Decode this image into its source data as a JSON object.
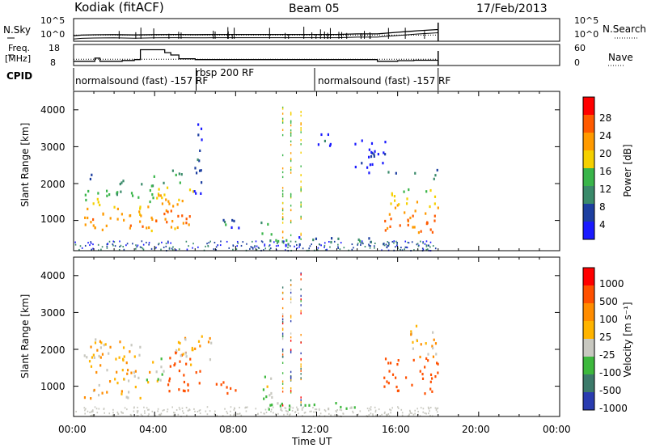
{
  "header": {
    "radar": "Kodiak (fitACF)",
    "beam": "Beam 05",
    "date": "17/Feb/2013"
  },
  "top_panels": {
    "nsky_label": "N.Sky",
    "nsky_ticks": [
      "10^5",
      "10^0"
    ],
    "nsearch_ticks": [
      "10^5",
      "10^0"
    ],
    "nsearch_label": "N.Search",
    "freq_label_1": "Freq.",
    "freq_label_2": "[MHz]",
    "freq_ticks": [
      "18",
      "8"
    ],
    "nave_ticks": [
      "60",
      "0"
    ],
    "nave_label": "Nave",
    "cpid_label": "CPID",
    "cpid_segments": [
      {
        "label": "normalsound (fast) -157 RF",
        "start": 0.0,
        "end": 6.05
      },
      {
        "label": "rbsp 200 RF",
        "start": 6.05,
        "end": 11.9
      },
      {
        "label": "normalsound (fast) -157 RF",
        "start": 11.9,
        "end": 18.0
      }
    ]
  },
  "axes": {
    "xlabel": "Time UT",
    "xticks": [
      "00:00",
      "04:00",
      "08:00",
      "12:00",
      "16:00",
      "20:00",
      "00:00"
    ],
    "ylabel": "Slant Range [km]",
    "yticks": [
      "1000",
      "2000",
      "3000",
      "4000"
    ]
  },
  "power_colorbar": {
    "label": "Power [dB]",
    "ticks": [
      "28",
      "24",
      "20",
      "16",
      "12",
      "8",
      "4"
    ]
  },
  "velocity_colorbar": {
    "label": "Velocity [m s⁻¹]",
    "ticks": [
      "1000",
      "500",
      "100",
      "25",
      "-25",
      "-100",
      "-500",
      "-1000"
    ]
  },
  "colors": {
    "power": [
      "#1a1aff",
      "#1d3fa0",
      "#3a8a6a",
      "#39b54a",
      "#f5d000",
      "#ff9a00",
      "#ff5a00",
      "#ff0000"
    ],
    "velocity": [
      "#2a3cb0",
      "#3c7a6a",
      "#3db83d",
      "#c8c8c0",
      "#ffb400",
      "#ff8c00",
      "#ff5000",
      "#ff0000"
    ]
  },
  "chart_data": [
    {
      "type": "line",
      "title": "N.Sky / N.Search",
      "x_range": [
        0,
        24
      ],
      "y_scale": "log",
      "ylim": [
        1,
        100000
      ],
      "series": [
        {
          "name": "N.Sky",
          "x": [
            0,
            0.4,
            1,
            2,
            3,
            4,
            5,
            6,
            7,
            8,
            9,
            10,
            11,
            12,
            13,
            14,
            15,
            16,
            17,
            18
          ],
          "values": [
            10,
            15,
            18,
            20,
            16,
            20,
            22,
            20,
            22,
            22,
            22,
            22,
            22,
            22,
            22,
            30,
            30,
            80,
            200,
            400
          ]
        },
        {
          "name": "N.Search",
          "x": [
            0,
            18
          ],
          "values": [
            15,
            15
          ]
        }
      ]
    },
    {
      "type": "line",
      "title": "Freq. / Nave",
      "x_range": [
        0,
        24
      ],
      "series": [
        {
          "name": "Freq. [MHz]",
          "ylim": [
            8,
            18
          ],
          "x": [
            0,
            0.8,
            1.05,
            1.3,
            1.6,
            2.4,
            3.0,
            3.3,
            3.9,
            4.5,
            4.8,
            5.2,
            6.0,
            14.7,
            15.0,
            16.0,
            16.8,
            18.0
          ],
          "values": [
            10,
            10,
            11.5,
            10,
            10,
            10.4,
            10.8,
            15.5,
            15.5,
            14.1,
            13.0,
            11.2,
            10.8,
            10.8,
            10,
            10.3,
            10.5,
            10.5
          ]
        },
        {
          "name": "Nave",
          "ylim": [
            0,
            60
          ],
          "x": [
            0,
            18
          ],
          "values": [
            18,
            18
          ]
        }
      ]
    },
    {
      "type": "heatmap",
      "title": "Power [dB]",
      "xlabel": "Time UT",
      "ylabel": "Slant Range [km]",
      "xlim": [
        0,
        24
      ],
      "ylim": [
        180,
        4500
      ],
      "colorbar_range": [
        0,
        30
      ],
      "regions": [
        {
          "t": [
            0.5,
            3.9
          ],
          "r": [
            700,
            2300
          ],
          "peak_r": 1000,
          "level": 24
        },
        {
          "t": [
            3.9,
            5.9
          ],
          "r": [
            800,
            2400
          ],
          "peak_r": 1150,
          "level": 26
        },
        {
          "t": [
            5.9,
            6.3
          ],
          "r": [
            1500,
            3900
          ],
          "peak_r": 2600,
          "level": 10
        },
        {
          "t": [
            7.2,
            8.2
          ],
          "r": [
            800,
            1200
          ],
          "peak_r": 950,
          "level": 12
        },
        {
          "t": [
            9.2,
            9.8
          ],
          "r": [
            650,
            1200
          ],
          "peak_r": 800,
          "level": 18
        },
        {
          "t": [
            9.5,
            14.9
          ],
          "r": [
            350,
            600
          ],
          "peak_r": 470,
          "level": 14
        },
        {
          "t": [
            12.0,
            12.7
          ],
          "r": [
            2900,
            3600
          ],
          "peak_r": 3200,
          "level": 8
        },
        {
          "t": [
            13.8,
            15.4
          ],
          "r": [
            2300,
            3200
          ],
          "peak_r": 2700,
          "level": 6
        },
        {
          "t": [
            15.3,
            18.0
          ],
          "r": [
            700,
            2500
          ],
          "peak_r": 950,
          "level": 26
        }
      ]
    },
    {
      "type": "heatmap",
      "title": "Velocity [m s⁻¹]",
      "xlabel": "Time UT",
      "ylabel": "Slant Range [km]",
      "xlim": [
        0,
        24
      ],
      "ylim": [
        180,
        4500
      ],
      "colorbar_range": [
        -1000,
        1000
      ],
      "regions": [
        {
          "t": [
            0.5,
            3.3
          ],
          "r": [
            700,
            2300
          ],
          "velocity": 0
        },
        {
          "t": [
            3.3,
            4.5
          ],
          "r": [
            1100,
            1800
          ],
          "velocity": 50
        },
        {
          "t": [
            4.5,
            6.3
          ],
          "r": [
            900,
            2000
          ],
          "velocity": -200
        },
        {
          "t": [
            5.0,
            6.8
          ],
          "r": [
            1600,
            2400
          ],
          "velocity": 0
        },
        {
          "t": [
            7.0,
            8.1
          ],
          "r": [
            800,
            1200
          ],
          "velocity": -150
        },
        {
          "t": [
            9.2,
            10.0
          ],
          "r": [
            650,
            1300
          ],
          "velocity": 100
        },
        {
          "t": [
            9.6,
            15.0
          ],
          "r": [
            380,
            600
          ],
          "velocity": 120
        },
        {
          "t": [
            15.3,
            18.0
          ],
          "r": [
            800,
            1800
          ],
          "velocity": -400
        },
        {
          "t": [
            16.6,
            18.0
          ],
          "r": [
            1800,
            2700
          ],
          "velocity": 0
        }
      ]
    }
  ]
}
